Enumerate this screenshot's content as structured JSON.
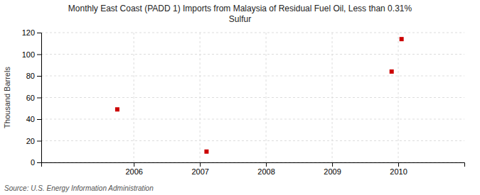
{
  "chart_data": {
    "type": "scatter",
    "title": "Monthly East Coast (PADD 1) Imports from Malaysia of Residual Fuel Oil, Less than 0.31%\nSulfur",
    "ylabel": "Thousand Barrels",
    "annotations": [
      "Source: U.S. Energy Information Administration"
    ],
    "x": [
      2005.75,
      2007.1,
      2009.9,
      2010.05
    ],
    "values": [
      49,
      10,
      84,
      114
    ],
    "color": "#cc0000",
    "marker": "square",
    "xlim": [
      2004.6,
      2011.0
    ],
    "ylim": [
      0,
      120
    ],
    "xticks": [
      2006,
      2007,
      2008,
      2009,
      2010
    ],
    "yticks": [
      0,
      20,
      40,
      60,
      80,
      100,
      120
    ],
    "grid": true
  }
}
